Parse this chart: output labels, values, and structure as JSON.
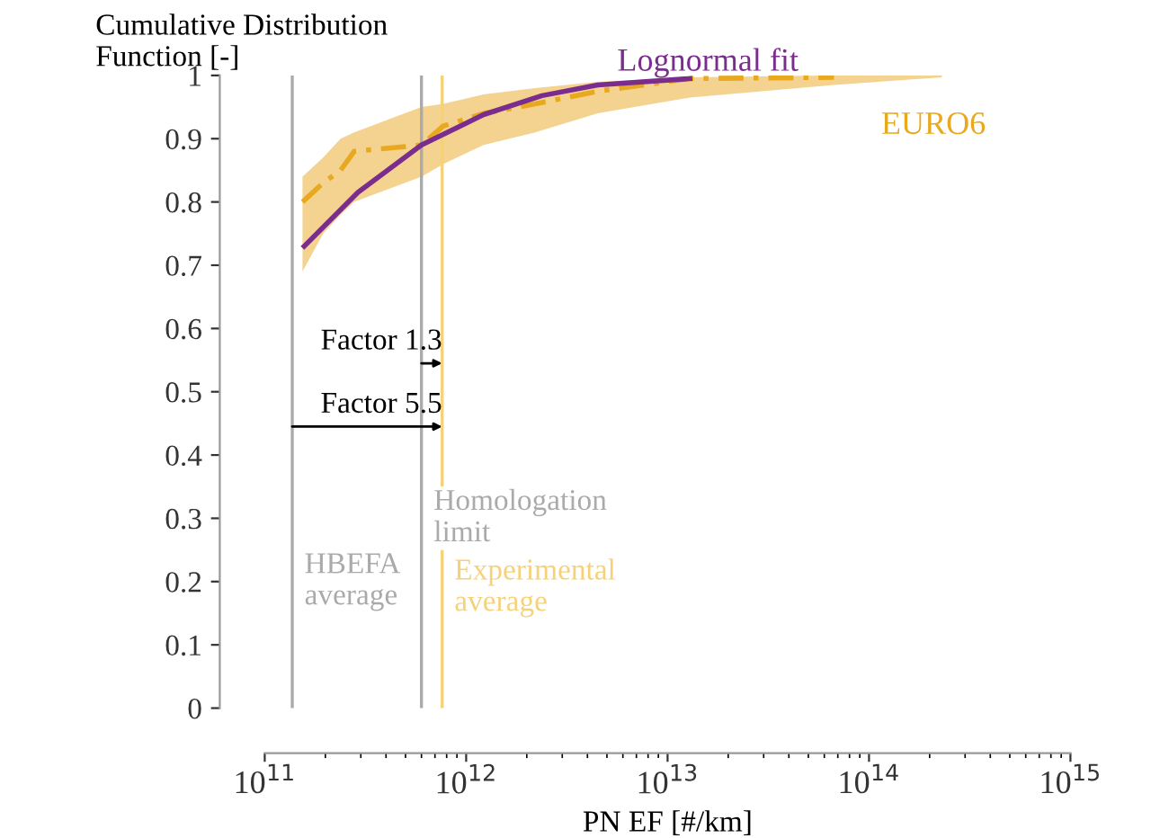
{
  "chart_data": {
    "type": "line",
    "xlabel": "PN EF [#/km]",
    "ylabel": "Cumulative Distribution\nFunction [-]",
    "log": "x",
    "grid": false,
    "xlim": [
      100000000000.0,
      1000000000000000.0
    ],
    "xticks": [
      {
        "value": 100000000000.0,
        "label": "10$^{11}$"
      },
      {
        "value": 1000000000000.0,
        "label": "10$^{12}$"
      },
      {
        "value": 10000000000000.0,
        "label": "10$^{13}$"
      },
      {
        "value": 100000000000000.0,
        "label": "10$^{14}$"
      },
      {
        "value": 1000000000000000.0,
        "label": "10$^{15}$"
      }
    ],
    "ylim": [
      0,
      1
    ],
    "yticks": [
      0,
      0.1,
      0.2,
      0.3,
      0.4,
      0.5,
      0.6,
      0.7,
      0.8,
      0.9,
      1
    ],
    "series": [
      {
        "name": "EURO6",
        "color": "#e8a820",
        "line_style": "dashed",
        "x": [
          154000000000.0,
          195000000000.0,
          238000000000.0,
          278000000000.0,
          600000000000.0,
          770000000000.0,
          1220000000000.0,
          2200000000000.0,
          4500000000000.0,
          12900000000000.0,
          67000000000000.0,
          230000000000000.0
        ],
        "values": [
          0.8,
          0.83,
          0.85,
          0.88,
          0.89,
          0.92,
          0.94,
          0.955,
          0.975,
          0.995,
          0.997,
          null
        ],
        "lower": [
          0.69,
          0.75,
          0.78,
          0.8,
          0.84,
          0.86,
          0.89,
          0.91,
          0.94,
          0.965,
          0.985,
          0.997
        ],
        "upper": [
          0.84,
          0.87,
          0.9,
          0.91,
          0.95,
          0.955,
          0.97,
          0.98,
          0.99,
          0.997,
          1.0,
          1.0
        ]
      },
      {
        "name": "Lognormal fit",
        "color": "#7b2d8e",
        "line_style": "solid",
        "x": [
          157000000000.0,
          290000000000.0,
          600000000000.0,
          1220000000000.0,
          2380000000000.0,
          4500000000000.0,
          12900000000000.0
        ],
        "values": [
          0.73,
          0.815,
          0.89,
          0.938,
          0.968,
          0.985,
          0.995
        ]
      }
    ],
    "ref_lines": [
      {
        "axis": "x",
        "value": 137000000000.0,
        "label": "HBEFA\naverage",
        "color": "#aaaaaa"
      },
      {
        "axis": "x",
        "value": 600000000000.0,
        "label": "Homologation\nlimit",
        "color": "#aaaaaa"
      },
      {
        "axis": "x",
        "value": 760000000000.0,
        "label": "Experimental\naverage",
        "color": "#f5d27a"
      }
    ],
    "annotations": [
      "Factor 5.5",
      "Factor 1.3"
    ]
  }
}
